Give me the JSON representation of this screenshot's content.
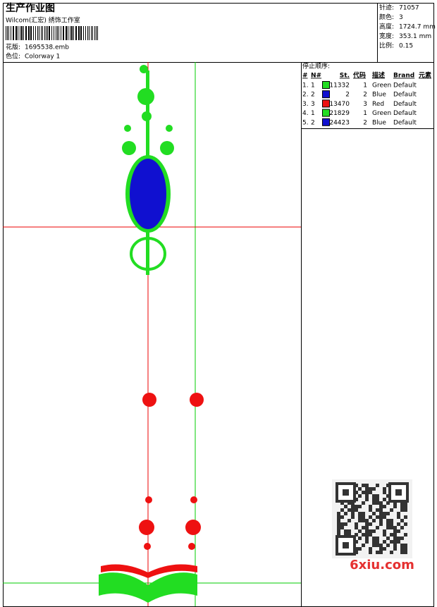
{
  "header": {
    "title": "生产作业图",
    "studio": "Wilcom(汇宏) 绣饰工作室",
    "design_label": "花版:",
    "design_value": "1695538.emb",
    "colorway_label": "色位:",
    "colorway_value": "Colorway 1"
  },
  "info": [
    {
      "label": "针迹:",
      "value": "71057"
    },
    {
      "label": "颜色:",
      "value": "3"
    },
    {
      "label": "高度:",
      "value": "1724.7 mm"
    },
    {
      "label": "宽度:",
      "value": "353.1 mm"
    },
    {
      "label": "比例:",
      "value": "0.15"
    }
  ],
  "table": {
    "title": "停止顺序:",
    "columns": [
      "#",
      "N#",
      "St.",
      "代码",
      "描述",
      "Brand",
      "元素"
    ],
    "rows": [
      {
        "index": "1.",
        "needle": "1",
        "color": "#22dd22",
        "stitches": "11332",
        "code": "1",
        "description": "Green",
        "brand": "Default"
      },
      {
        "index": "2.",
        "needle": "2",
        "color": "#1010d0",
        "stitches": "2",
        "code": "2",
        "description": "Blue",
        "brand": "Default"
      },
      {
        "index": "3.",
        "needle": "3",
        "color": "#ee1111",
        "stitches": "13470",
        "code": "3",
        "description": "Red",
        "brand": "Default"
      },
      {
        "index": "4.",
        "needle": "1",
        "color": "#22dd22",
        "stitches": "21829",
        "code": "1",
        "description": "Green",
        "brand": "Default"
      },
      {
        "index": "5.",
        "needle": "2",
        "color": "#1010d0",
        "stitches": "24423",
        "code": "2",
        "description": "Blue",
        "brand": "Default"
      }
    ]
  },
  "watermark": "6xiu.com"
}
